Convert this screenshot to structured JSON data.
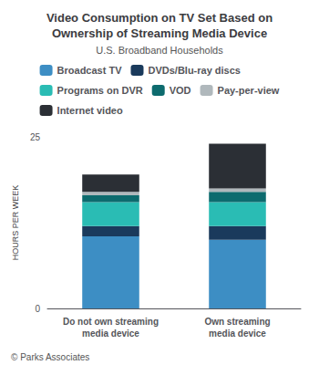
{
  "chart_data": {
    "type": "bar",
    "title": "Video Consumption on TV Set Based on\nOwnership of Streaming Media Device",
    "subtitle": "U.S. Broadband Households",
    "ylabel": "HOURS PER WEEK",
    "annotations": [
      "© Parks Associates"
    ],
    "categories": [
      "Do not own streaming\nmedia device",
      "Own streaming\nmedia device"
    ],
    "series": [
      {
        "name": "Broadcast TV",
        "color": "#3d8ec4",
        "values": [
          10.5,
          10.0
        ]
      },
      {
        "name": "DVDs/Blu-ray discs",
        "color": "#1a3a5c",
        "values": [
          1.5,
          2.0
        ]
      },
      {
        "name": "Programs on DVR",
        "color": "#2abcb4",
        "values": [
          3.5,
          3.5
        ]
      },
      {
        "name": "VOD",
        "color": "#0d6b6e",
        "values": [
          1.0,
          1.5
        ]
      },
      {
        "name": "Pay-per-view",
        "color": "#b0b8bc",
        "values": [
          0.5,
          0.5
        ]
      },
      {
        "name": "Internet video",
        "color": "#2b2f35",
        "values": [
          2.5,
          6.5
        ]
      }
    ],
    "stacked": true,
    "ylim": [
      0,
      25
    ],
    "yticks": [
      0,
      25
    ],
    "grid": false,
    "legend": "top"
  }
}
